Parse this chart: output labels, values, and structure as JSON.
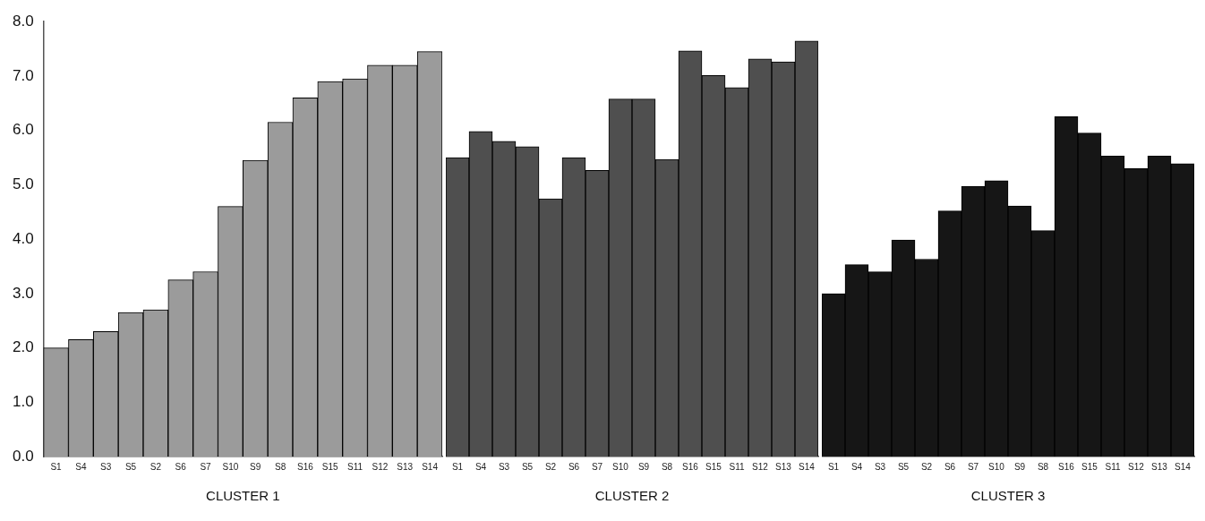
{
  "chart_data": [
    {
      "type": "bar",
      "xlabel": "CLUSTER 1",
      "categories": [
        "S1",
        "S4",
        "S3",
        "S5",
        "S2",
        "S6",
        "S7",
        "S10",
        "S9",
        "S8",
        "S16",
        "S15",
        "S11",
        "S12",
        "S13",
        "S14"
      ],
      "values": [
        2.0,
        2.15,
        2.3,
        2.65,
        2.7,
        3.25,
        3.4,
        4.6,
        5.45,
        6.15,
        6.6,
        6.9,
        6.95,
        7.2,
        7.2,
        7.45
      ],
      "color": "#9b9b9b",
      "ylim": [
        0,
        8
      ],
      "yticks": [
        {
          "value": 0,
          "label": "0.0"
        },
        {
          "value": 1,
          "label": "1.0"
        },
        {
          "value": 2,
          "label": "2.0"
        },
        {
          "value": 3,
          "label": "3.0"
        },
        {
          "value": 4,
          "label": "4.0"
        },
        {
          "value": 5,
          "label": "5.0"
        },
        {
          "value": 6,
          "label": "6.0"
        },
        {
          "value": 7,
          "label": "7.0"
        },
        {
          "value": 8,
          "label": "8.0"
        }
      ],
      "grid": false
    },
    {
      "type": "bar",
      "xlabel": "CLUSTER 2",
      "categories": [
        "S1",
        "S4",
        "S3",
        "S5",
        "S2",
        "S6",
        "S7",
        "S10",
        "S9",
        "S8",
        "S16",
        "S15",
        "S11",
        "S12",
        "S13",
        "S14"
      ],
      "values": [
        5.45,
        5.93,
        5.75,
        5.65,
        4.7,
        5.45,
        5.22,
        6.52,
        6.52,
        5.42,
        7.4,
        6.95,
        6.73,
        7.25,
        7.2,
        7.58
      ],
      "color": "#4f4f4f",
      "ylim": [
        0,
        8
      ],
      "tick_labels": "x",
      "grid": false
    },
    {
      "type": "bar",
      "xlabel": "CLUSTER 3",
      "categories": [
        "S1",
        "S4",
        "S3",
        "S5",
        "S2",
        "S6",
        "S7",
        "S10",
        "S9",
        "S8",
        "S16",
        "S15",
        "S11",
        "S12",
        "S13",
        "S14"
      ],
      "values": [
        2.97,
        3.5,
        3.37,
        3.95,
        3.6,
        4.48,
        4.93,
        5.03,
        4.57,
        4.12,
        6.2,
        5.9,
        5.48,
        5.25,
        5.48,
        5.34
      ],
      "color": "#161616",
      "ylim": [
        0,
        8
      ],
      "tick_labels": "x",
      "grid": false
    }
  ]
}
